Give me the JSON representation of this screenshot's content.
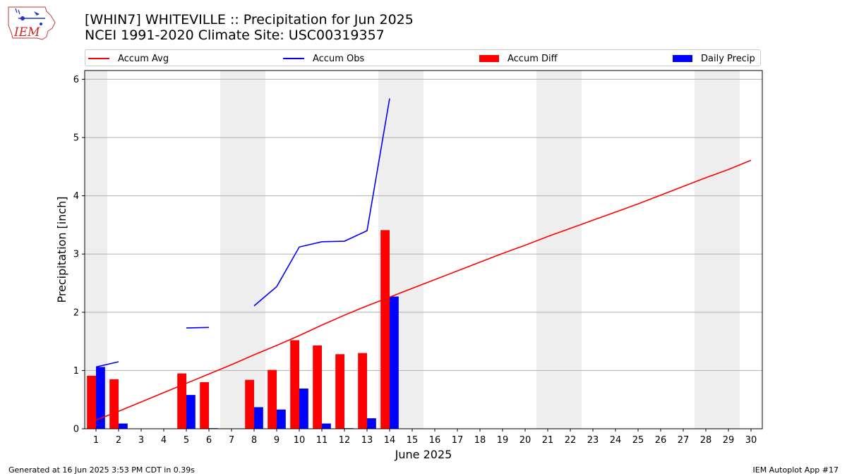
{
  "header": {
    "title": "[WHIN7] WHITEVILLE :: Precipitation for Jun 2025",
    "subtitle": "NCEI 1991-2020 Climate Site: USC00319357"
  },
  "logo": {
    "text": "IEM"
  },
  "footer": {
    "generated": "Generated at 16 Jun 2025 3:53 PM CDT in 0.39s",
    "app": "IEM Autoplot App #17"
  },
  "colors": {
    "avg": "#ff0000",
    "obs": "#0000ff",
    "diff": "#ff0000",
    "daily": "#0000ff",
    "weekend": "#eeeeee",
    "grid": "#b0b0b0"
  },
  "chart_data": {
    "type": "bar",
    "xlabel": "June 2025",
    "ylabel": "Precipitation [inch]",
    "xlim": [
      0.5,
      30.5
    ],
    "ylim": [
      0,
      6.15
    ],
    "yticks": [
      0,
      1,
      2,
      3,
      4,
      5,
      6
    ],
    "x": [
      1,
      2,
      3,
      4,
      5,
      6,
      7,
      8,
      9,
      10,
      11,
      12,
      13,
      14,
      15,
      16,
      17,
      18,
      19,
      20,
      21,
      22,
      23,
      24,
      25,
      26,
      27,
      28,
      29,
      30
    ],
    "weekend_days": [
      1,
      7,
      8,
      14,
      15,
      21,
      22,
      28,
      29
    ],
    "legend": {
      "accum_avg": "Accum Avg",
      "accum_obs": "Accum Obs",
      "accum_diff": "Accum Diff",
      "daily_precip": "Daily Precip"
    },
    "series": [
      {
        "name": "Accum Avg",
        "kind": "line",
        "values": [
          0.15,
          0.3,
          0.46,
          0.62,
          0.78,
          0.94,
          1.1,
          1.27,
          1.43,
          1.6,
          1.78,
          1.95,
          2.11,
          2.26,
          2.41,
          2.56,
          2.71,
          2.86,
          3.01,
          3.15,
          3.3,
          3.44,
          3.58,
          3.72,
          3.86,
          4.01,
          4.16,
          4.31,
          4.45,
          4.61
        ]
      },
      {
        "name": "Accum Obs",
        "kind": "line",
        "segments": [
          {
            "x": [
              1,
              2
            ],
            "values": [
              1.06,
              1.15
            ]
          },
          {
            "x": [
              5,
              6
            ],
            "values": [
              1.73,
              1.74
            ]
          },
          {
            "x": [
              8,
              9,
              10,
              11,
              12,
              13,
              14
            ],
            "values": [
              2.11,
              2.44,
              3.12,
              3.21,
              3.22,
              3.4,
              5.67
            ]
          }
        ]
      },
      {
        "name": "Accum Diff",
        "kind": "bar",
        "x": [
          1,
          2,
          5,
          6,
          8,
          9,
          10,
          11,
          12,
          13,
          14
        ],
        "values": [
          0.91,
          0.85,
          0.95,
          0.8,
          0.84,
          1.01,
          1.52,
          1.43,
          1.28,
          1.3,
          3.41
        ]
      },
      {
        "name": "Daily Precip",
        "kind": "bar",
        "x": [
          1,
          2,
          5,
          6,
          8,
          9,
          10,
          11,
          12,
          13,
          14
        ],
        "values": [
          1.06,
          0.09,
          0.58,
          0.01,
          0.37,
          0.33,
          0.69,
          0.09,
          0.01,
          0.18,
          2.27
        ]
      }
    ]
  }
}
